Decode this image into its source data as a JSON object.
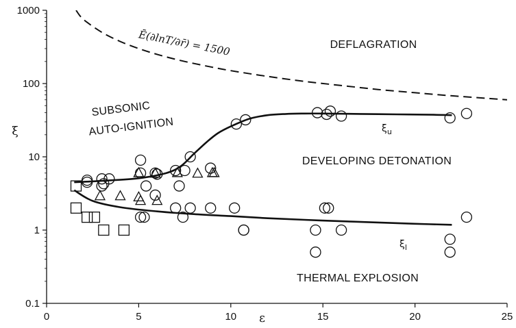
{
  "chart_data": {
    "type": "scatter",
    "x_label": "ε",
    "y_label": "ξ",
    "x_range": [
      0,
      25
    ],
    "y_range": [
      0.1,
      1000
    ],
    "y_scale": "log",
    "x_ticks": [
      "0",
      "5",
      "10",
      "15",
      "20",
      "25"
    ],
    "y_ticks": [
      "0.1",
      "1",
      "10",
      "100",
      "1000"
    ],
    "grid": false,
    "regions": {
      "deflagration": "DEFLAGRATION",
      "subsonic_1": "SUBSONIC",
      "subsonic_2": "AUTO-IGNITION",
      "developing": "DEVELOPING DETONATION",
      "thermal": "THERMAL EXPLOSION"
    },
    "dashed_curve": {
      "label": "Ē(∂lnT/∂r̄) = 1500",
      "x": [
        1.6,
        2,
        3,
        4,
        5,
        6,
        7,
        8,
        9,
        10,
        12,
        14,
        16,
        18,
        20,
        22,
        25
      ],
      "y": [
        1000,
        750,
        500,
        375,
        300,
        250,
        214,
        188,
        167,
        150,
        125,
        107,
        94,
        83,
        75,
        68,
        60
      ]
    },
    "upper_curve": {
      "label": "ξ",
      "label_sub": "u",
      "x": [
        1.5,
        3,
        5,
        6.5,
        7.3,
        8,
        8.7,
        9.3,
        10,
        11,
        12,
        13,
        14,
        15,
        17,
        19,
        21,
        22
      ],
      "y": [
        4.5,
        4.7,
        5.1,
        6,
        7.5,
        11,
        16,
        21,
        26,
        33,
        37,
        38.5,
        39,
        39,
        38.5,
        38,
        37.5,
        37
      ]
    },
    "lower_curve": {
      "label": "ξ",
      "label_sub": "l",
      "x": [
        1.5,
        2.5,
        4,
        6,
        8,
        10,
        12,
        14,
        16,
        18,
        20,
        22
      ],
      "y": [
        3.5,
        2.5,
        2.05,
        1.8,
        1.65,
        1.55,
        1.45,
        1.38,
        1.32,
        1.27,
        1.22,
        1.18
      ]
    },
    "series": [
      {
        "marker": "circle",
        "x": [
          2.2,
          2.2,
          3.0,
          3.1,
          3.4,
          3.0,
          5.1,
          5.4,
          5.1,
          5.9,
          5.9,
          6.0,
          7.2,
          7.5,
          7.0,
          7.8,
          8.9,
          10.3,
          10.8,
          14.7,
          15.2,
          15.4,
          16.0,
          21.9,
          22.8,
          7.0,
          7.4,
          7.8,
          8.9,
          10.2,
          10.7,
          10.7,
          15.1,
          15.3,
          5.1,
          5.3,
          14.6,
          14.6,
          16.0,
          21.9,
          21.9,
          22.8
        ],
        "y": [
          4.8,
          4.5,
          5.0,
          4.3,
          5.0,
          4.0,
          9.0,
          4.0,
          6.0,
          6.0,
          3.0,
          5.8,
          4.0,
          6.5,
          6.5,
          10.0,
          7.0,
          28.0,
          32.0,
          40.0,
          38.0,
          42.0,
          36.0,
          34.0,
          39.0,
          2.0,
          1.5,
          2.0,
          2.0,
          2.0,
          1.0,
          1.0,
          2.0,
          2.0,
          1.5,
          1.5,
          1.0,
          0.5,
          1.0,
          0.75,
          0.5,
          1.5
        ]
      },
      {
        "marker": "triangle",
        "x": [
          2.9,
          4.0,
          5.0,
          5.0,
          5.1,
          5.9,
          6.0,
          7.1,
          8.2,
          9.0,
          9.1
        ],
        "y": [
          2.9,
          2.9,
          6.0,
          2.8,
          2.5,
          5.9,
          2.5,
          6.0,
          5.9,
          6.0,
          6.0
        ]
      },
      {
        "marker": "square",
        "x": [
          1.6,
          1.6,
          2.2,
          2.6,
          3.1,
          4.2
        ],
        "y": [
          4.0,
          2.0,
          1.5,
          1.5,
          1.0,
          1.0
        ]
      }
    ]
  }
}
